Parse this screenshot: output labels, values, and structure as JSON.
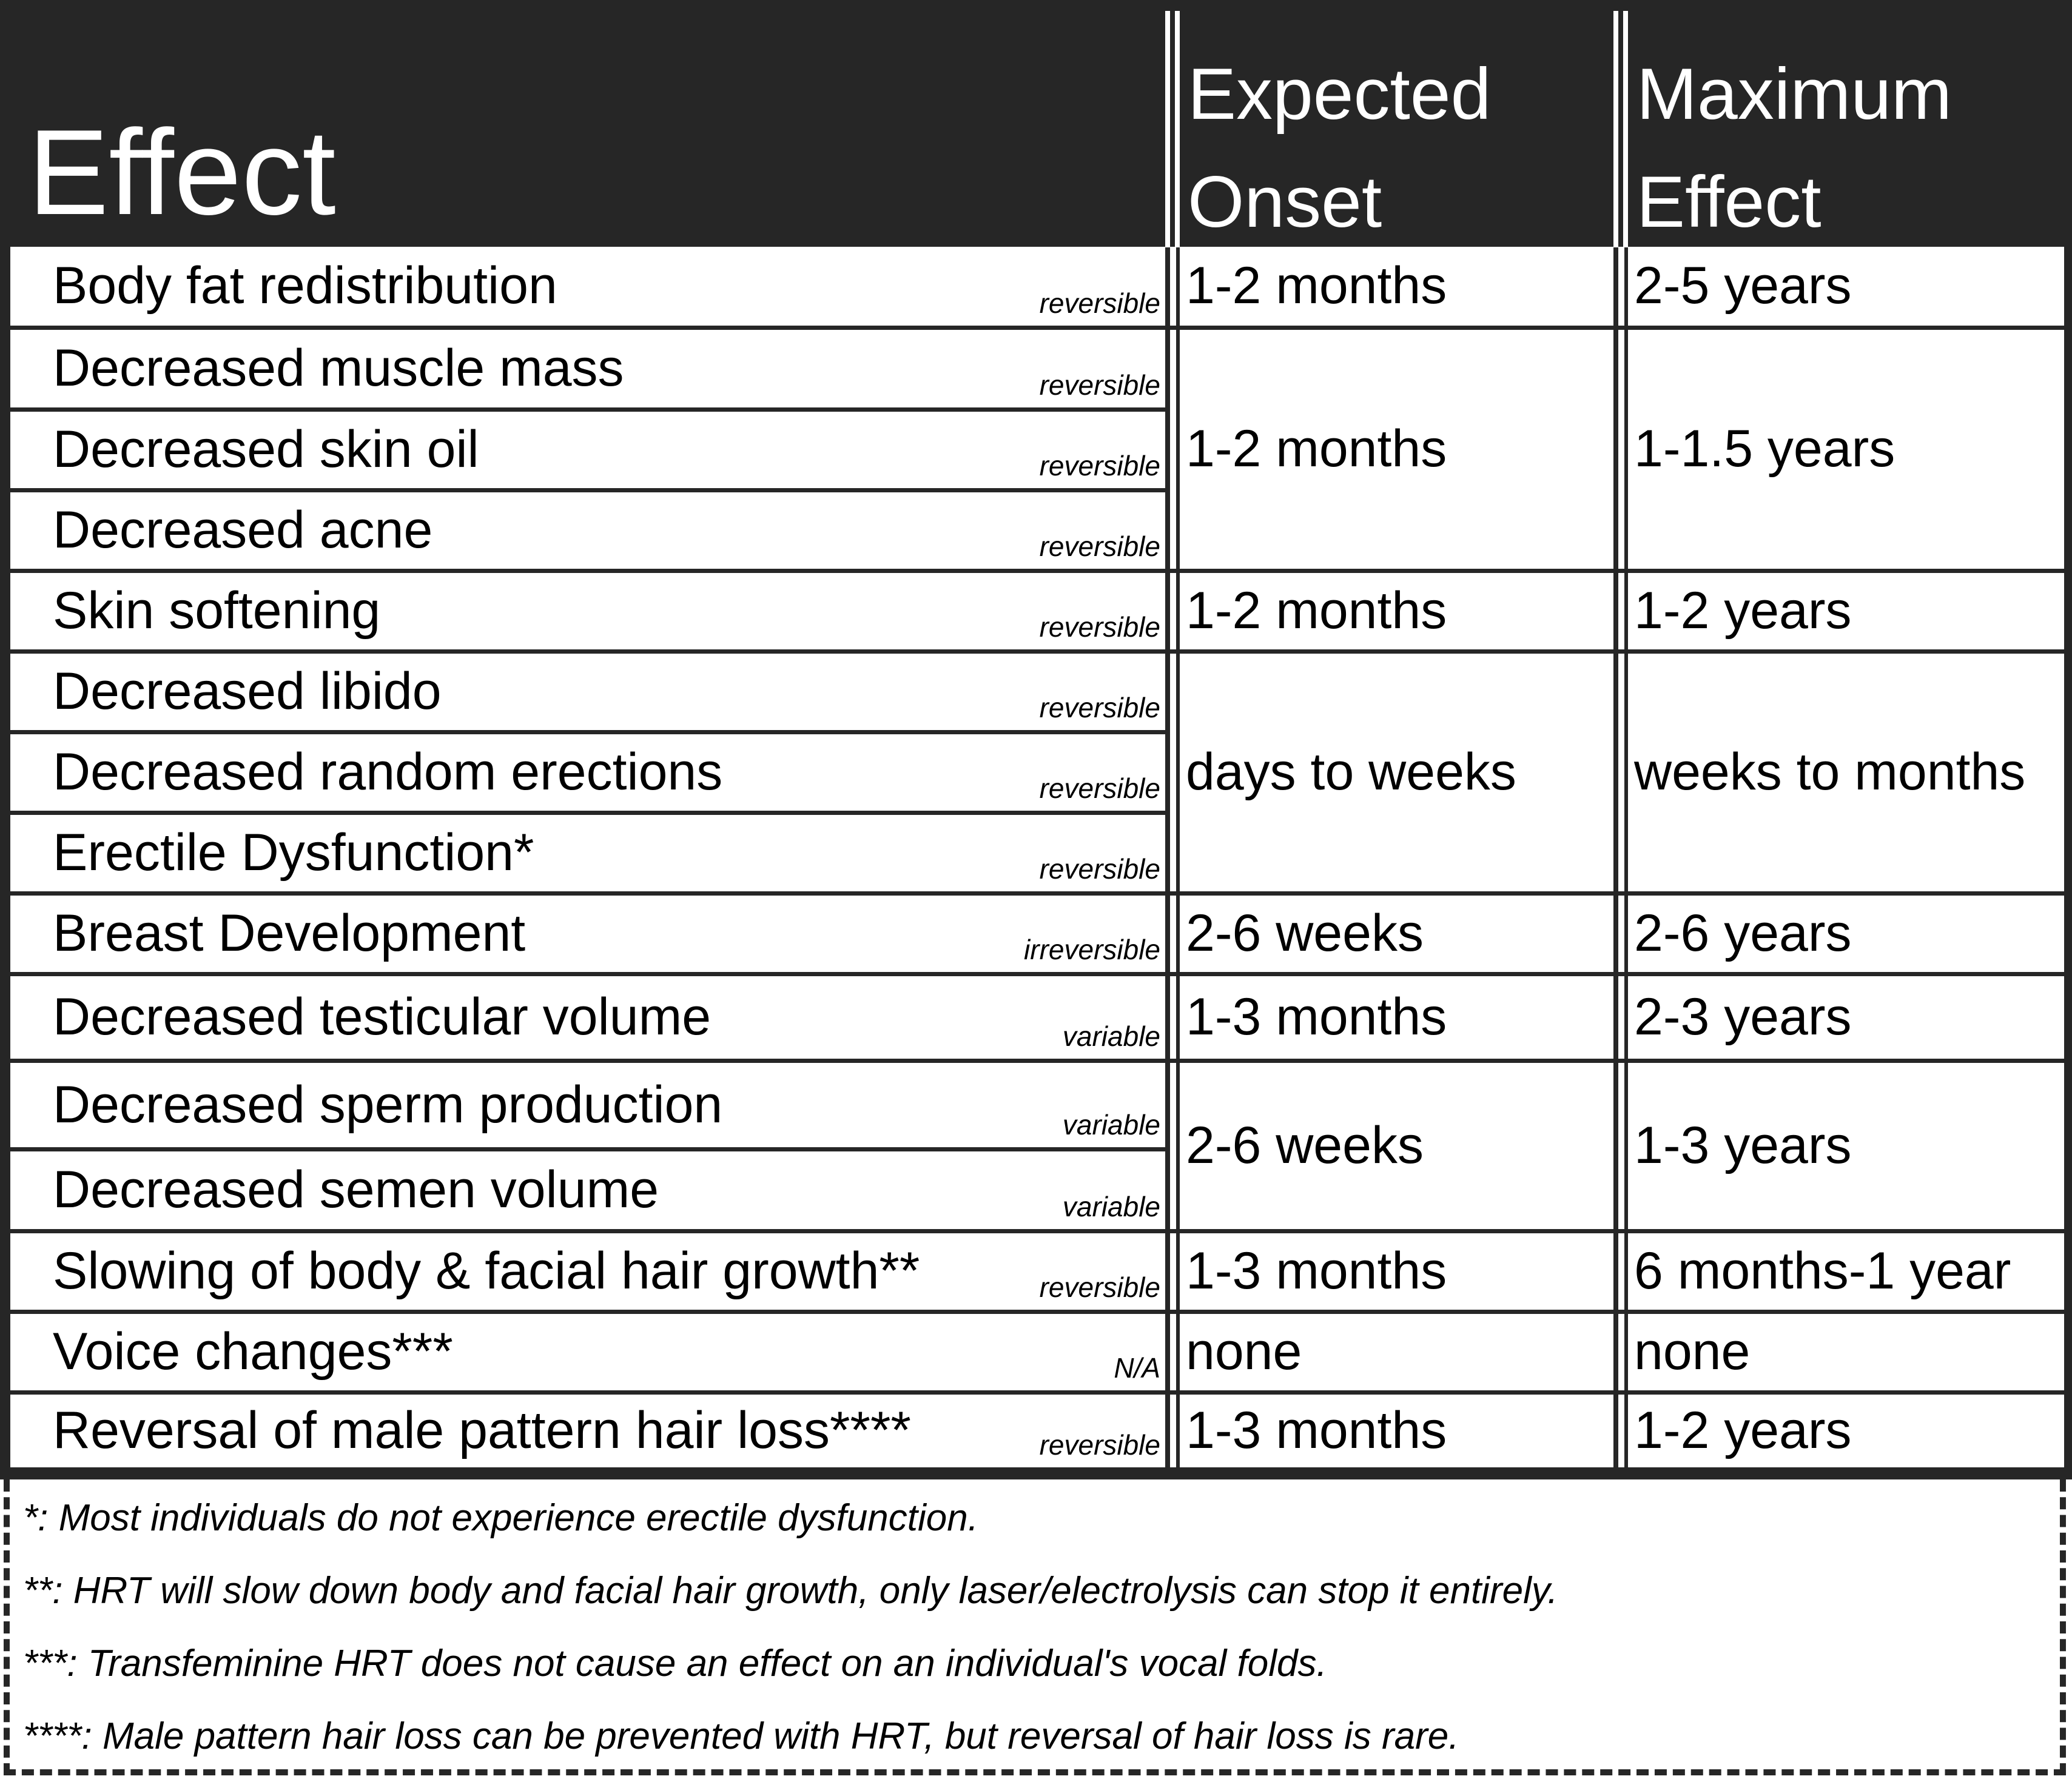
{
  "header": {
    "effect": "Effect",
    "onset": "Expected Onset",
    "onset_line1": "Expected",
    "onset_line2": "Onset",
    "max": "Maximum Effect",
    "max_line1": "Maximum",
    "max_line2": "Effect"
  },
  "colors": {
    "header_bg": "#262626",
    "cell_bg": "#ffffff",
    "text": "#000000"
  },
  "rows": [
    {
      "effect": "Body fat redistribution",
      "tag": "reversible"
    },
    {
      "effect": "Decreased muscle mass",
      "tag": "reversible"
    },
    {
      "effect": "Decreased skin oil",
      "tag": "reversible"
    },
    {
      "effect": "Decreased acne",
      "tag": "reversible"
    },
    {
      "effect": "Skin softening",
      "tag": "reversible"
    },
    {
      "effect": "Decreased libido",
      "tag": "reversible"
    },
    {
      "effect": "Decreased random erections",
      "tag": "reversible"
    },
    {
      "effect": "Erectile Dysfunction*",
      "tag": "reversible"
    },
    {
      "effect": "Breast Development",
      "tag": "irreversible"
    },
    {
      "effect": "Decreased testicular volume",
      "tag": "variable"
    },
    {
      "effect": "Decreased sperm production",
      "tag": "variable"
    },
    {
      "effect": "Decreased semen volume",
      "tag": "variable"
    },
    {
      "effect": "Slowing of body & facial hair growth**",
      "tag": "reversible"
    },
    {
      "effect": "Voice changes***",
      "tag": "N/A"
    },
    {
      "effect": "Reversal of male pattern hair loss****",
      "tag": "reversible"
    }
  ],
  "groups": [
    {
      "rows": [
        0
      ],
      "onset": "1-2 months",
      "max": "2-5 years"
    },
    {
      "rows": [
        1,
        2,
        3
      ],
      "onset": "1-2 months",
      "max": "1-1.5 years"
    },
    {
      "rows": [
        4
      ],
      "onset": "1-2 months",
      "max": "1-2 years"
    },
    {
      "rows": [
        5,
        6,
        7
      ],
      "onset": "days to weeks",
      "max": "weeks to months"
    },
    {
      "rows": [
        8
      ],
      "onset": "2-6 weeks",
      "max": "2-6 years"
    },
    {
      "rows": [
        9
      ],
      "onset": "1-3 months",
      "max": "2-3 years"
    },
    {
      "rows": [
        10,
        11
      ],
      "onset": "2-6 weeks",
      "max": "1-3 years"
    },
    {
      "rows": [
        12
      ],
      "onset": "1-3 months",
      "max": "6 months-1 year"
    },
    {
      "rows": [
        13
      ],
      "onset": "none",
      "max": "none"
    },
    {
      "rows": [
        14
      ],
      "onset": "1-3 months",
      "max": "1-2 years"
    }
  ],
  "footnotes": [
    "*: Most individuals do not experience erectile dysfunction.",
    "**: HRT will slow down body and facial hair growth, only laser/electrolysis can stop it entirely.",
    "***: Transfeminine HRT does not cause an effect on an individual's vocal folds.",
    "****: Male pattern hair loss can be prevented with HRT, but reversal of hair loss is rare."
  ]
}
